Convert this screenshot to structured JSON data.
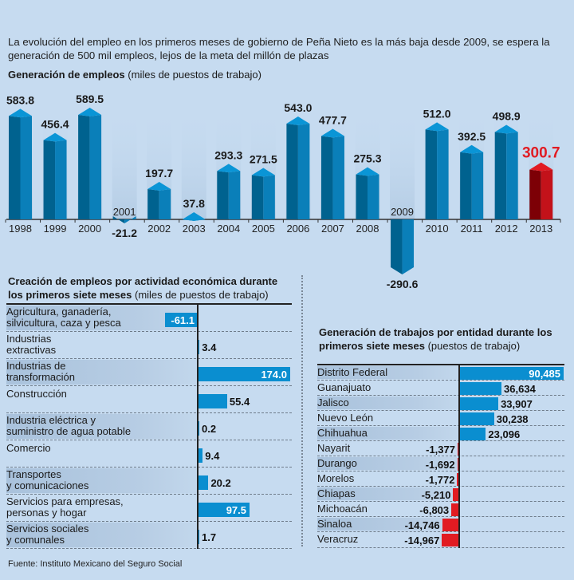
{
  "intro": "La evolución del empleo en los primeros meses de gobierno de Peña Nieto es la más baja desde 2009, se espera la generación de 500 mil empleos, lejos de la meta del millón de plazas",
  "source": "Fuente: Instituto Mexicano del Seguro Social",
  "colors": {
    "background": "#c6dbf0",
    "bar_blue": "#0a8ed0",
    "bar_blue_dark": "#00628f",
    "bar_blue_top": "#0a95d6",
    "highlight_red": "#e11b22",
    "highlight_red_dark": "#7d0006"
  },
  "chart_data": [
    {
      "type": "bar",
      "title": "Generación de empleos",
      "subtitle": "(miles de puestos de trabajo)",
      "xlabel": "",
      "ylabel": "",
      "categories": [
        "1998",
        "1999",
        "2000",
        "2001",
        "2002",
        "2003",
        "2004",
        "2005",
        "2006",
        "2007",
        "2008",
        "2009",
        "2010",
        "2011",
        "2012",
        "2013"
      ],
      "values": [
        583.8,
        456.4,
        589.5,
        -21.2,
        197.7,
        37.8,
        293.3,
        271.5,
        543.0,
        477.7,
        275.3,
        -290.6,
        512.0,
        392.5,
        498.9,
        300.7
      ],
      "labels": [
        "583.8",
        "456.4",
        "589.5",
        "-21.2",
        "197.7",
        "37.8",
        "293.3",
        "271.5",
        "543.0",
        "477.7",
        "275.3",
        "-290.6",
        "512.0",
        "392.5",
        "498.9",
        "300.7"
      ],
      "highlight": "2013",
      "ylim": [
        -300,
        600
      ],
      "grid": false,
      "legend": "none"
    },
    {
      "type": "bar",
      "orientation": "horizontal",
      "title": "Creación de empleos por actividad económica durante los primeros siete meses",
      "subtitle": "(miles de puestos de trabajo)",
      "categories": [
        [
          "Agricultura, ganadería,",
          "silvicultura, caza y pesca"
        ],
        [
          "Industrias",
          "extractivas"
        ],
        [
          "Industrias de",
          "transformación"
        ],
        [
          "Construcción"
        ],
        [
          "Industria eléctrica y",
          "suministro de agua potable"
        ],
        [
          "Comercio"
        ],
        [
          "Transportes",
          "y comunicaciones"
        ],
        [
          "Servicios para empresas,",
          "personas y hogar"
        ],
        [
          "Servicios sociales",
          "y comunales"
        ]
      ],
      "values": [
        -61.1,
        3.4,
        174.0,
        55.4,
        0.2,
        9.4,
        20.2,
        97.5,
        1.7
      ],
      "labels": [
        "-61.1",
        "3.4",
        "174.0",
        "55.4",
        "0.2",
        "9.4",
        "20.2",
        "97.5",
        "1.7"
      ],
      "xlim": [
        -100,
        175
      ]
    },
    {
      "type": "bar",
      "orientation": "horizontal",
      "title": "Generación de trabajos por entidad durante los primeros siete meses",
      "subtitle": "(puestos de trabajo)",
      "categories": [
        "Distrito Federal",
        "Guanajuato",
        "Jalisco",
        "Nuevo León",
        "Chihuahua",
        "Nayarit",
        "Durango",
        "Morelos",
        "Chiapas",
        "Michoacán",
        "Sinaloa",
        "Veracruz"
      ],
      "values": [
        90485,
        36634,
        33907,
        30238,
        23096,
        -1377,
        -1692,
        -1772,
        -5210,
        -6803,
        -14746,
        -14967
      ],
      "labels": [
        "90,485",
        "36,634",
        "33,907",
        "30,238",
        "23,096",
        "-1,377",
        "-1,692",
        "-1,772",
        "-5,210",
        "-6,803",
        "-14,746",
        "-14,967"
      ],
      "xlim": [
        -65000,
        91000
      ]
    }
  ]
}
